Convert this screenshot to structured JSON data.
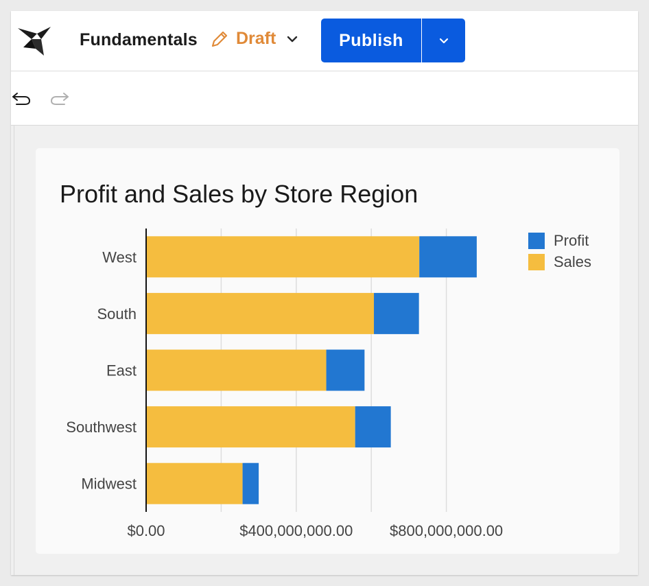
{
  "app": {
    "document_title": "Fundamentals",
    "status_label": "Draft",
    "publish_label": "Publish"
  },
  "colors": {
    "accent": "#0a5bdf",
    "draft": "#e08a38",
    "profit": "#2277d1",
    "sales": "#f5bd3f"
  },
  "icons": {
    "logo": "bird-logo-icon",
    "edit": "pencil-icon",
    "status_menu": "chevron-down-icon",
    "publish_menu": "chevron-down-icon",
    "undo": "undo-icon",
    "redo": "redo-icon"
  },
  "chart_data": {
    "type": "bar",
    "orientation": "horizontal",
    "stacked": true,
    "title": "Profit and Sales by Store Region",
    "categories": [
      "West",
      "South",
      "East",
      "Southwest",
      "Midwest"
    ],
    "series": [
      {
        "name": "Sales",
        "color": "#f5bd3f",
        "values": [
          728000000,
          607000000,
          480000000,
          557000000,
          257000000
        ]
      },
      {
        "name": "Profit",
        "color": "#2277d1",
        "values": [
          153000000,
          120000000,
          102000000,
          95000000,
          43000000
        ]
      }
    ],
    "legend_order": [
      "Profit",
      "Sales"
    ],
    "xlim": [
      0,
      1000000000
    ],
    "x_ticks": [
      0,
      200000000,
      400000000,
      600000000,
      800000000
    ],
    "x_tick_labels": [
      "$0.00",
      "",
      "$400,000,000.00",
      "",
      "$800,000,000.00"
    ],
    "grid": "vertical",
    "legend_position": "top-right"
  }
}
